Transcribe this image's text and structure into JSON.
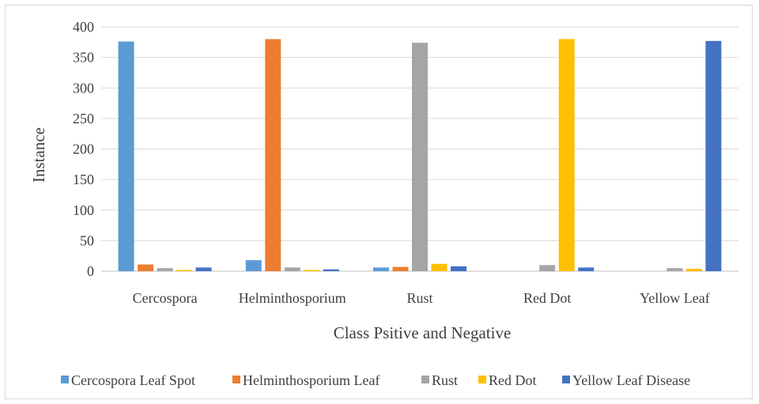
{
  "chart_data": {
    "type": "bar",
    "title": "",
    "xlabel": "Class Psitive and Negative",
    "ylabel": "Instance",
    "ylim": [
      0,
      400
    ],
    "yticks": [
      0,
      50,
      100,
      150,
      200,
      250,
      300,
      350,
      400
    ],
    "grid": true,
    "legend_position": "bottom",
    "categories": [
      "Cercospora",
      "Helminthosporium",
      "Rust",
      "Red Dot",
      "Yellow Leaf"
    ],
    "series": [
      {
        "name": "Cercospora Leaf Spot",
        "color": "#5b9bd5",
        "values": [
          376,
          18,
          6,
          0,
          0
        ]
      },
      {
        "name": "Helminthosporium Leaf",
        "color": "#ed7d31",
        "values": [
          11,
          380,
          7,
          0,
          0
        ]
      },
      {
        "name": "Rust",
        "color": "#a5a5a5",
        "values": [
          5,
          6,
          374,
          10,
          5
        ]
      },
      {
        "name": "Red Dot",
        "color": "#ffc000",
        "values": [
          2,
          2,
          12,
          380,
          4
        ]
      },
      {
        "name": "Yellow Leaf Disease",
        "color": "#4472c4",
        "values": [
          6,
          3,
          8,
          6,
          377
        ]
      }
    ]
  }
}
